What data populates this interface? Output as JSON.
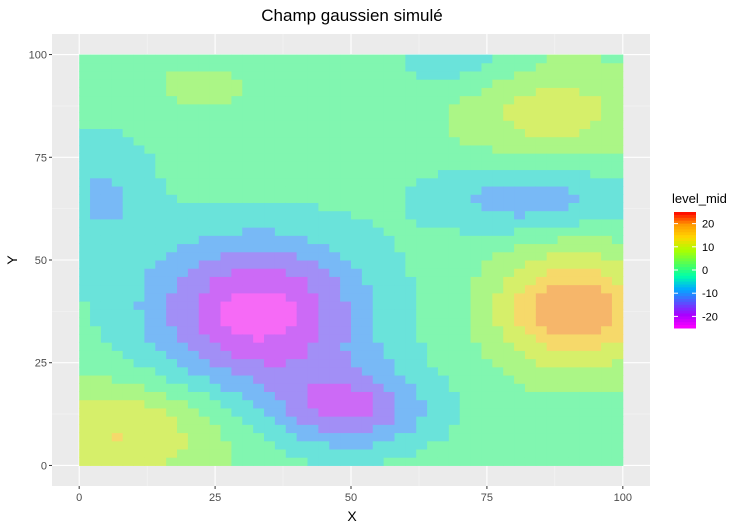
{
  "chart_data": {
    "type": "heatmap",
    "title": "Champ gaussien simulé",
    "xlabel": "X",
    "ylabel": "Y",
    "xlim": [
      -5,
      105
    ],
    "ylim": [
      -5,
      105
    ],
    "x_ticks": [
      0,
      25,
      50,
      75,
      100
    ],
    "y_ticks": [
      0,
      25,
      50,
      75,
      100
    ],
    "x_tick_labels": [
      "0",
      "25",
      "50",
      "75",
      "100"
    ],
    "y_tick_labels": [
      "0",
      "25",
      "50",
      "75",
      "100"
    ],
    "grid": true,
    "panel_background": "#ebebeb",
    "legend": {
      "title": "level_mid",
      "position": "right",
      "ticks": [
        20,
        10,
        0,
        -10,
        -20
      ],
      "tick_labels": [
        "20",
        "10",
        "0",
        "-10",
        "-20"
      ],
      "range": [
        -25,
        25
      ]
    },
    "colormap": [
      "#ff00ff",
      "#aa00ff",
      "#5555ff",
      "#00aaff",
      "#00ffaa",
      "#55ff55",
      "#aaff00",
      "#ffd700",
      "#ff9900",
      "#ff0000"
    ],
    "bumps": [
      {
        "x": 33,
        "y": 37,
        "amp": -25,
        "sx": 14,
        "sy": 13
      },
      {
        "x": 50,
        "y": 14,
        "amp": -17,
        "sx": 10,
        "sy": 7
      },
      {
        "x": 91,
        "y": 38,
        "amp": 22,
        "sx": 10,
        "sy": 10
      },
      {
        "x": 8,
        "y": 8,
        "amp": 13,
        "sx": 13,
        "sy": 9
      },
      {
        "x": 87,
        "y": 86,
        "amp": 10,
        "sx": 12,
        "sy": 9
      },
      {
        "x": 83,
        "y": 65,
        "amp": -11,
        "sx": 13,
        "sy": 6
      },
      {
        "x": 4,
        "y": 66,
        "amp": -8,
        "sx": 7,
        "sy": 12
      },
      {
        "x": 70,
        "y": 98,
        "amp": -6,
        "sx": 9,
        "sy": 5
      },
      {
        "x": 22,
        "y": 92,
        "amp": 3,
        "sx": 14,
        "sy": 8
      }
    ]
  }
}
